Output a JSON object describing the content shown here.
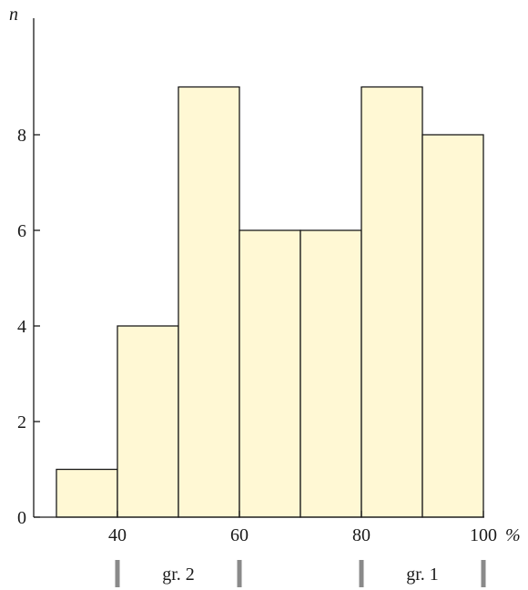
{
  "chart_data": {
    "type": "bar",
    "bins": [
      {
        "x0": 30,
        "x1": 40,
        "value": 1
      },
      {
        "x0": 40,
        "x1": 50,
        "value": 4
      },
      {
        "x0": 50,
        "x1": 60,
        "value": 9
      },
      {
        "x0": 60,
        "x1": 70,
        "value": 6
      },
      {
        "x0": 70,
        "x1": 80,
        "value": 6
      },
      {
        "x0": 80,
        "x1": 90,
        "value": 9
      },
      {
        "x0": 90,
        "x1": 100,
        "value": 8
      }
    ],
    "xlim": [
      30,
      100
    ],
    "ylim": [
      0,
      10
    ],
    "xticks": [
      "40",
      "60",
      "80",
      "100"
    ],
    "yticks": [
      "0",
      "2",
      "4",
      "6",
      "8"
    ],
    "xlabel": "%",
    "ylabel": "n",
    "groups": [
      {
        "label": "gr. 2",
        "range": [
          40,
          60
        ]
      },
      {
        "label": "gr. 1",
        "range": [
          80,
          100
        ]
      }
    ],
    "colors": {
      "bar_fill": "#fff8d4",
      "bar_stroke": "#1a1a1a",
      "group_marker": "#8a8a8a"
    },
    "grid": false,
    "legend": "none"
  }
}
